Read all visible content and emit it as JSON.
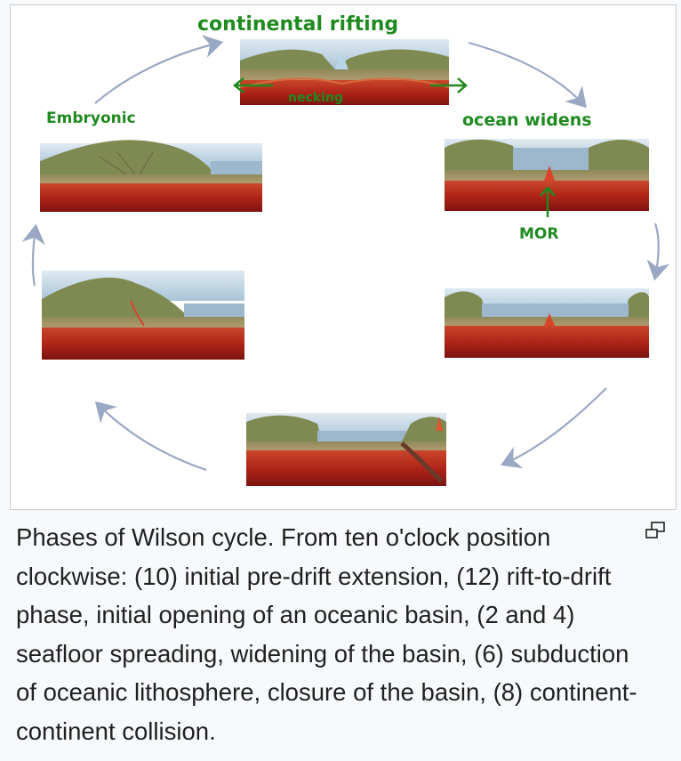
{
  "annotations": {
    "continental_rifting": "continental rifting",
    "necking": "necking",
    "embryonic": "Embryonic",
    "ocean_widens": "ocean widens",
    "mor": "MOR"
  },
  "caption": {
    "text": "Phases of Wilson cycle. From ten o'clock position clockwise: (10) initial pre-drift extension, (12) rift-to-drift phase, initial opening of an oceanic basin, (2 and 4) seafloor spreading, widening of the basin, (6) subduction of oceanic lithosphere, closure of the basin, (8) continent-continent collision."
  },
  "icons": {
    "enlarge": "enlarge-icon"
  },
  "colors": {
    "annotation_green": "#1f8a1f",
    "arrow_blue": "#9aa8c4",
    "mantle_red": "#b82a1c",
    "ocean_blue": "#a9c3d6"
  }
}
